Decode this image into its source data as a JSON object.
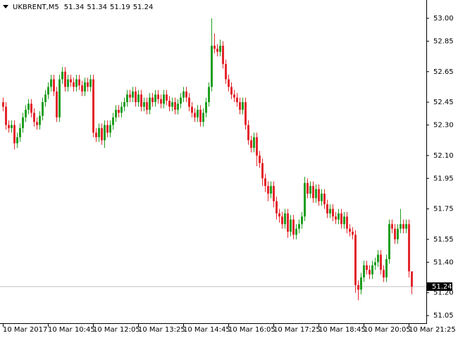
{
  "chart_data": {
    "type": "candlestick",
    "symbol": "UKBRENT,M5",
    "header_ohlc": [
      51.34,
      51.34,
      51.19,
      51.24
    ],
    "up_color": "#1f9e1f",
    "down_color": "#e3262c",
    "current_price": 51.24,
    "ylim": [
      51.0,
      53.12
    ],
    "yticks": [
      {
        "value": 53.0,
        "label": "53.00"
      },
      52.85,
      52.65,
      52.45,
      {
        "value": 52.3,
        "label": "52.30"
      },
      {
        "value": 52.1,
        "label": "52.10"
      },
      51.95,
      51.75,
      51.55,
      {
        "value": 51.4,
        "label": "51.40"
      },
      {
        "value": 51.2,
        "label": "51.20"
      },
      51.05
    ],
    "xtick_labels": [
      "10 Mar 2017",
      "10 Mar 10:45",
      "10 Mar 12:05",
      "10 Mar 13:25",
      "10 Mar 14:45",
      "10 Mar 16:05",
      "10 Mar 17:25",
      "10 Mar 18:45",
      "10 Mar 20:05",
      "10 Mar 21:25"
    ],
    "candles": [
      [
        52.45,
        52.48,
        52.39,
        52.42
      ],
      [
        52.42,
        52.45,
        52.27,
        52.3
      ],
      [
        52.3,
        52.33,
        52.25,
        52.28
      ],
      [
        52.28,
        52.33,
        52.25,
        52.3
      ],
      [
        52.3,
        52.33,
        52.14,
        52.18
      ],
      [
        52.18,
        52.25,
        52.15,
        52.22
      ],
      [
        52.22,
        52.31,
        52.19,
        52.28
      ],
      [
        52.28,
        52.38,
        52.25,
        52.35
      ],
      [
        52.35,
        52.43,
        52.32,
        52.4
      ],
      [
        52.4,
        52.47,
        52.37,
        52.44
      ],
      [
        52.44,
        52.47,
        52.35,
        52.38
      ],
      [
        52.38,
        52.41,
        52.29,
        52.32
      ],
      [
        52.32,
        52.35,
        52.27,
        52.3
      ],
      [
        52.3,
        52.39,
        52.27,
        52.36
      ],
      [
        52.36,
        52.48,
        52.33,
        52.45
      ],
      [
        52.45,
        52.53,
        52.42,
        52.5
      ],
      [
        52.5,
        52.58,
        52.47,
        52.55
      ],
      [
        52.55,
        52.63,
        52.52,
        52.6
      ],
      [
        52.6,
        52.63,
        52.49,
        52.52
      ],
      [
        52.52,
        52.55,
        52.32,
        52.35
      ],
      [
        52.35,
        52.63,
        52.32,
        52.6
      ],
      [
        52.6,
        52.68,
        52.57,
        52.65
      ],
      [
        52.65,
        52.68,
        52.52,
        52.55
      ],
      [
        52.55,
        52.63,
        52.52,
        52.6
      ],
      [
        52.6,
        52.63,
        52.55,
        52.58
      ],
      [
        52.58,
        52.61,
        52.52,
        52.55
      ],
      [
        52.55,
        52.63,
        52.52,
        52.6
      ],
      [
        52.6,
        52.63,
        52.53,
        52.56
      ],
      [
        52.56,
        52.59,
        52.49,
        52.52
      ],
      [
        52.52,
        52.61,
        52.49,
        52.58
      ],
      [
        52.58,
        52.61,
        52.52,
        52.55
      ],
      [
        52.55,
        52.63,
        52.52,
        52.6
      ],
      [
        52.6,
        52.63,
        52.22,
        52.25
      ],
      [
        52.25,
        52.28,
        52.19,
        52.22
      ],
      [
        52.22,
        52.31,
        52.19,
        52.28
      ],
      [
        52.28,
        52.31,
        52.17,
        52.2
      ],
      [
        52.2,
        52.33,
        52.15,
        52.3
      ],
      [
        52.3,
        52.33,
        52.22,
        52.25
      ],
      [
        52.25,
        52.33,
        52.22,
        52.3
      ],
      [
        52.3,
        52.38,
        52.27,
        52.35
      ],
      [
        52.35,
        52.43,
        52.32,
        52.4
      ],
      [
        52.4,
        52.43,
        52.35,
        52.38
      ],
      [
        52.38,
        52.45,
        52.35,
        52.42
      ],
      [
        52.42,
        52.48,
        52.39,
        52.45
      ],
      [
        52.45,
        52.53,
        52.42,
        52.5
      ],
      [
        52.5,
        52.53,
        52.45,
        52.48
      ],
      [
        52.48,
        52.55,
        52.45,
        52.52
      ],
      [
        52.52,
        52.55,
        52.42,
        52.45
      ],
      [
        52.45,
        52.53,
        52.42,
        52.5
      ],
      [
        52.5,
        52.53,
        52.39,
        52.42
      ],
      [
        52.42,
        52.48,
        52.39,
        52.45
      ],
      [
        52.45,
        52.48,
        52.37,
        52.4
      ],
      [
        52.4,
        52.51,
        52.37,
        52.48
      ],
      [
        52.48,
        52.51,
        52.42,
        52.45
      ],
      [
        52.45,
        52.53,
        52.42,
        52.5
      ],
      [
        52.5,
        52.53,
        52.44,
        52.47
      ],
      [
        52.47,
        52.5,
        52.41,
        52.44
      ],
      [
        52.44,
        52.53,
        52.41,
        52.5
      ],
      [
        52.5,
        52.53,
        52.43,
        52.46
      ],
      [
        52.46,
        52.49,
        52.39,
        52.42
      ],
      [
        52.42,
        52.48,
        52.39,
        52.45
      ],
      [
        52.45,
        52.48,
        52.37,
        52.4
      ],
      [
        52.4,
        52.47,
        52.37,
        52.44
      ],
      [
        52.44,
        52.51,
        52.41,
        52.48
      ],
      [
        52.48,
        52.55,
        52.45,
        52.52
      ],
      [
        52.52,
        52.55,
        52.45,
        52.48
      ],
      [
        52.48,
        52.51,
        52.39,
        52.42
      ],
      [
        52.42,
        52.45,
        52.35,
        52.38
      ],
      [
        52.38,
        52.41,
        52.32,
        52.35
      ],
      [
        52.35,
        52.43,
        52.32,
        52.4
      ],
      [
        52.4,
        52.43,
        52.29,
        52.32
      ],
      [
        52.32,
        52.41,
        52.29,
        52.38
      ],
      [
        52.38,
        52.48,
        52.35,
        52.45
      ],
      [
        52.45,
        52.58,
        52.42,
        52.55
      ],
      [
        52.55,
        53.0,
        52.52,
        52.82
      ],
      [
        52.82,
        52.9,
        52.77,
        52.8
      ],
      [
        52.8,
        52.83,
        52.75,
        52.78
      ],
      [
        52.78,
        52.86,
        52.75,
        52.82
      ],
      [
        52.82,
        52.85,
        52.67,
        52.7
      ],
      [
        52.7,
        52.73,
        52.57,
        52.6
      ],
      [
        52.6,
        52.63,
        52.52,
        52.55
      ],
      [
        52.55,
        52.58,
        52.47,
        52.5
      ],
      [
        52.5,
        52.53,
        52.45,
        52.48
      ],
      [
        52.48,
        52.51,
        52.42,
        52.45
      ],
      [
        52.45,
        52.48,
        52.37,
        52.4
      ],
      [
        52.4,
        52.48,
        52.37,
        52.45
      ],
      [
        52.45,
        52.48,
        52.27,
        52.3
      ],
      [
        52.3,
        52.33,
        52.17,
        52.2
      ],
      [
        52.2,
        52.23,
        52.12,
        52.15
      ],
      [
        52.15,
        52.25,
        52.12,
        52.22
      ],
      [
        52.22,
        52.25,
        52.03,
        52.1
      ],
      [
        52.1,
        52.13,
        52.02,
        52.05
      ],
      [
        52.05,
        52.08,
        51.9,
        51.95
      ],
      [
        51.95,
        51.98,
        51.86,
        51.9
      ],
      [
        51.9,
        51.93,
        51.8,
        51.85
      ],
      [
        51.85,
        51.93,
        51.82,
        51.9
      ],
      [
        51.9,
        51.93,
        51.76,
        51.8
      ],
      [
        51.8,
        51.83,
        51.68,
        51.72
      ],
      [
        51.72,
        51.75,
        51.66,
        51.7
      ],
      [
        51.7,
        51.73,
        51.62,
        51.65
      ],
      [
        51.65,
        51.75,
        51.62,
        51.72
      ],
      [
        51.72,
        51.75,
        51.56,
        51.6
      ],
      [
        51.6,
        51.71,
        51.57,
        51.68
      ],
      [
        51.68,
        51.71,
        51.55,
        51.58
      ],
      [
        51.58,
        51.65,
        51.55,
        51.62
      ],
      [
        51.62,
        51.68,
        51.59,
        51.65
      ],
      [
        51.65,
        51.73,
        51.62,
        51.7
      ],
      [
        51.7,
        51.96,
        51.67,
        51.92
      ],
      [
        51.92,
        51.95,
        51.82,
        51.85
      ],
      [
        51.85,
        51.93,
        51.82,
        51.9
      ],
      [
        51.9,
        51.93,
        51.79,
        51.82
      ],
      [
        51.82,
        51.91,
        51.79,
        51.88
      ],
      [
        51.88,
        51.91,
        51.77,
        51.8
      ],
      [
        51.8,
        51.88,
        51.77,
        51.85
      ],
      [
        51.85,
        51.88,
        51.75,
        51.78
      ],
      [
        51.78,
        51.81,
        51.69,
        51.72
      ],
      [
        51.72,
        51.78,
        51.69,
        51.75
      ],
      [
        51.75,
        51.78,
        51.67,
        51.7
      ],
      [
        51.7,
        51.73,
        51.65,
        51.68
      ],
      [
        51.68,
        51.75,
        51.65,
        51.72
      ],
      [
        51.72,
        51.75,
        51.62,
        51.65
      ],
      [
        51.65,
        51.73,
        51.62,
        51.7
      ],
      [
        51.7,
        51.73,
        51.59,
        51.62
      ],
      [
        51.62,
        51.65,
        51.57,
        51.6
      ],
      [
        51.6,
        51.63,
        51.55,
        51.58
      ],
      [
        51.58,
        51.61,
        51.2,
        51.25
      ],
      [
        51.25,
        51.28,
        51.15,
        51.22
      ],
      [
        51.22,
        51.33,
        51.19,
        51.3
      ],
      [
        51.3,
        51.41,
        51.27,
        51.38
      ],
      [
        51.38,
        51.41,
        51.32,
        51.35
      ],
      [
        51.35,
        51.38,
        51.29,
        51.32
      ],
      [
        51.32,
        51.41,
        51.29,
        51.38
      ],
      [
        51.38,
        51.43,
        51.35,
        51.4
      ],
      [
        51.4,
        51.48,
        51.37,
        51.45
      ],
      [
        51.45,
        51.48,
        51.32,
        51.35
      ],
      [
        51.35,
        51.38,
        51.27,
        51.3
      ],
      [
        51.3,
        51.45,
        51.27,
        51.42
      ],
      [
        51.42,
        51.68,
        51.39,
        51.65
      ],
      [
        51.65,
        51.68,
        51.59,
        51.62
      ],
      [
        51.62,
        51.65,
        51.52,
        51.55
      ],
      [
        51.55,
        51.65,
        51.52,
        51.62
      ],
      [
        51.62,
        51.75,
        51.59,
        51.65
      ],
      [
        51.65,
        51.68,
        51.59,
        51.62
      ],
      [
        51.62,
        51.68,
        51.59,
        51.65
      ],
      [
        51.65,
        51.68,
        51.3,
        51.34
      ],
      [
        51.34,
        51.34,
        51.19,
        51.24
      ]
    ]
  }
}
